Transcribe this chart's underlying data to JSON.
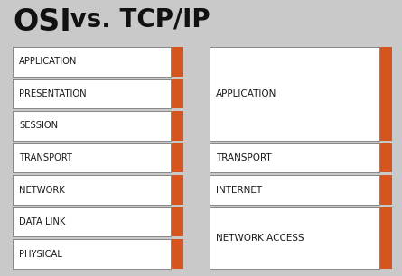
{
  "title": "OSI vs. TCP/IP",
  "title_osi": "OSI",
  "title_rest": " vs. TCP/IP",
  "bg_color": "#c9c9c9",
  "orange_color": "#d4561e",
  "white_color": "#ffffff",
  "box_border_color": "#888888",
  "text_color": "#1a1a1a",
  "title_color": "#111111",
  "osi_layers": [
    "APPLICATION",
    "PRESENTATION",
    "SESSION",
    "TRANSPORT",
    "NETWORK",
    "DATA LINK",
    "PHYSICAL"
  ],
  "tcpip_layers": [
    {
      "label": "APPLICATION",
      "span": 3
    },
    {
      "label": "TRANSPORT",
      "span": 1
    },
    {
      "label": "INTERNET",
      "span": 1
    },
    {
      "label": "NETWORK ACCESS",
      "span": 2
    }
  ],
  "fig_w": 4.45,
  "fig_h": 3.06,
  "dpi": 100
}
